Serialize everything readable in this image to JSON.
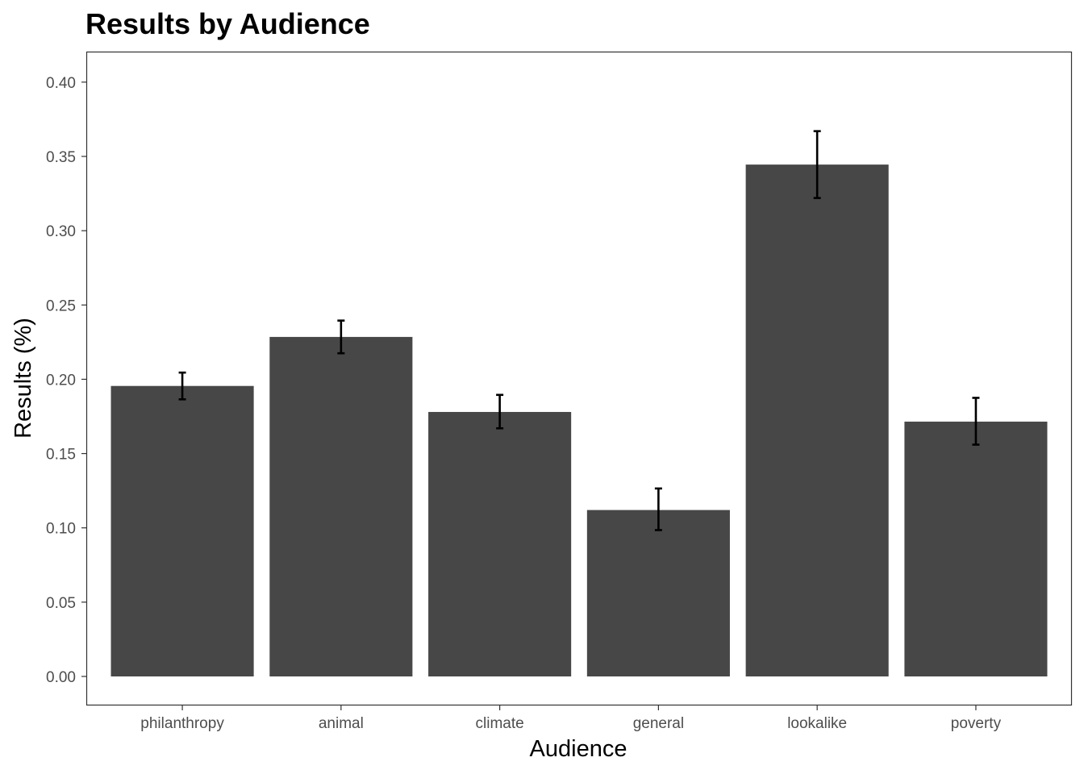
{
  "chart_data": {
    "type": "bar",
    "title": "Results by Audience",
    "xlabel": "Audience",
    "ylabel": "Results (%)",
    "categories": [
      "philanthropy",
      "animal",
      "climate",
      "general",
      "lookalike",
      "poverty"
    ],
    "values": [
      0.1955,
      0.2285,
      0.178,
      0.112,
      0.3445,
      0.1715
    ],
    "error_low": [
      0.1865,
      0.2175,
      0.167,
      0.0985,
      0.322,
      0.156
    ],
    "error_high": [
      0.2045,
      0.2395,
      0.1895,
      0.1265,
      0.367,
      0.1875
    ],
    "ylim": [
      -0.019,
      0.42
    ],
    "yticks": [
      "0.00",
      "0.05",
      "0.10",
      "0.15",
      "0.20",
      "0.25",
      "0.30",
      "0.35",
      "0.40"
    ],
    "grid": false,
    "bar_color": "#474747",
    "errorbar_color": "#000000",
    "panel_border_color": "#333333"
  }
}
